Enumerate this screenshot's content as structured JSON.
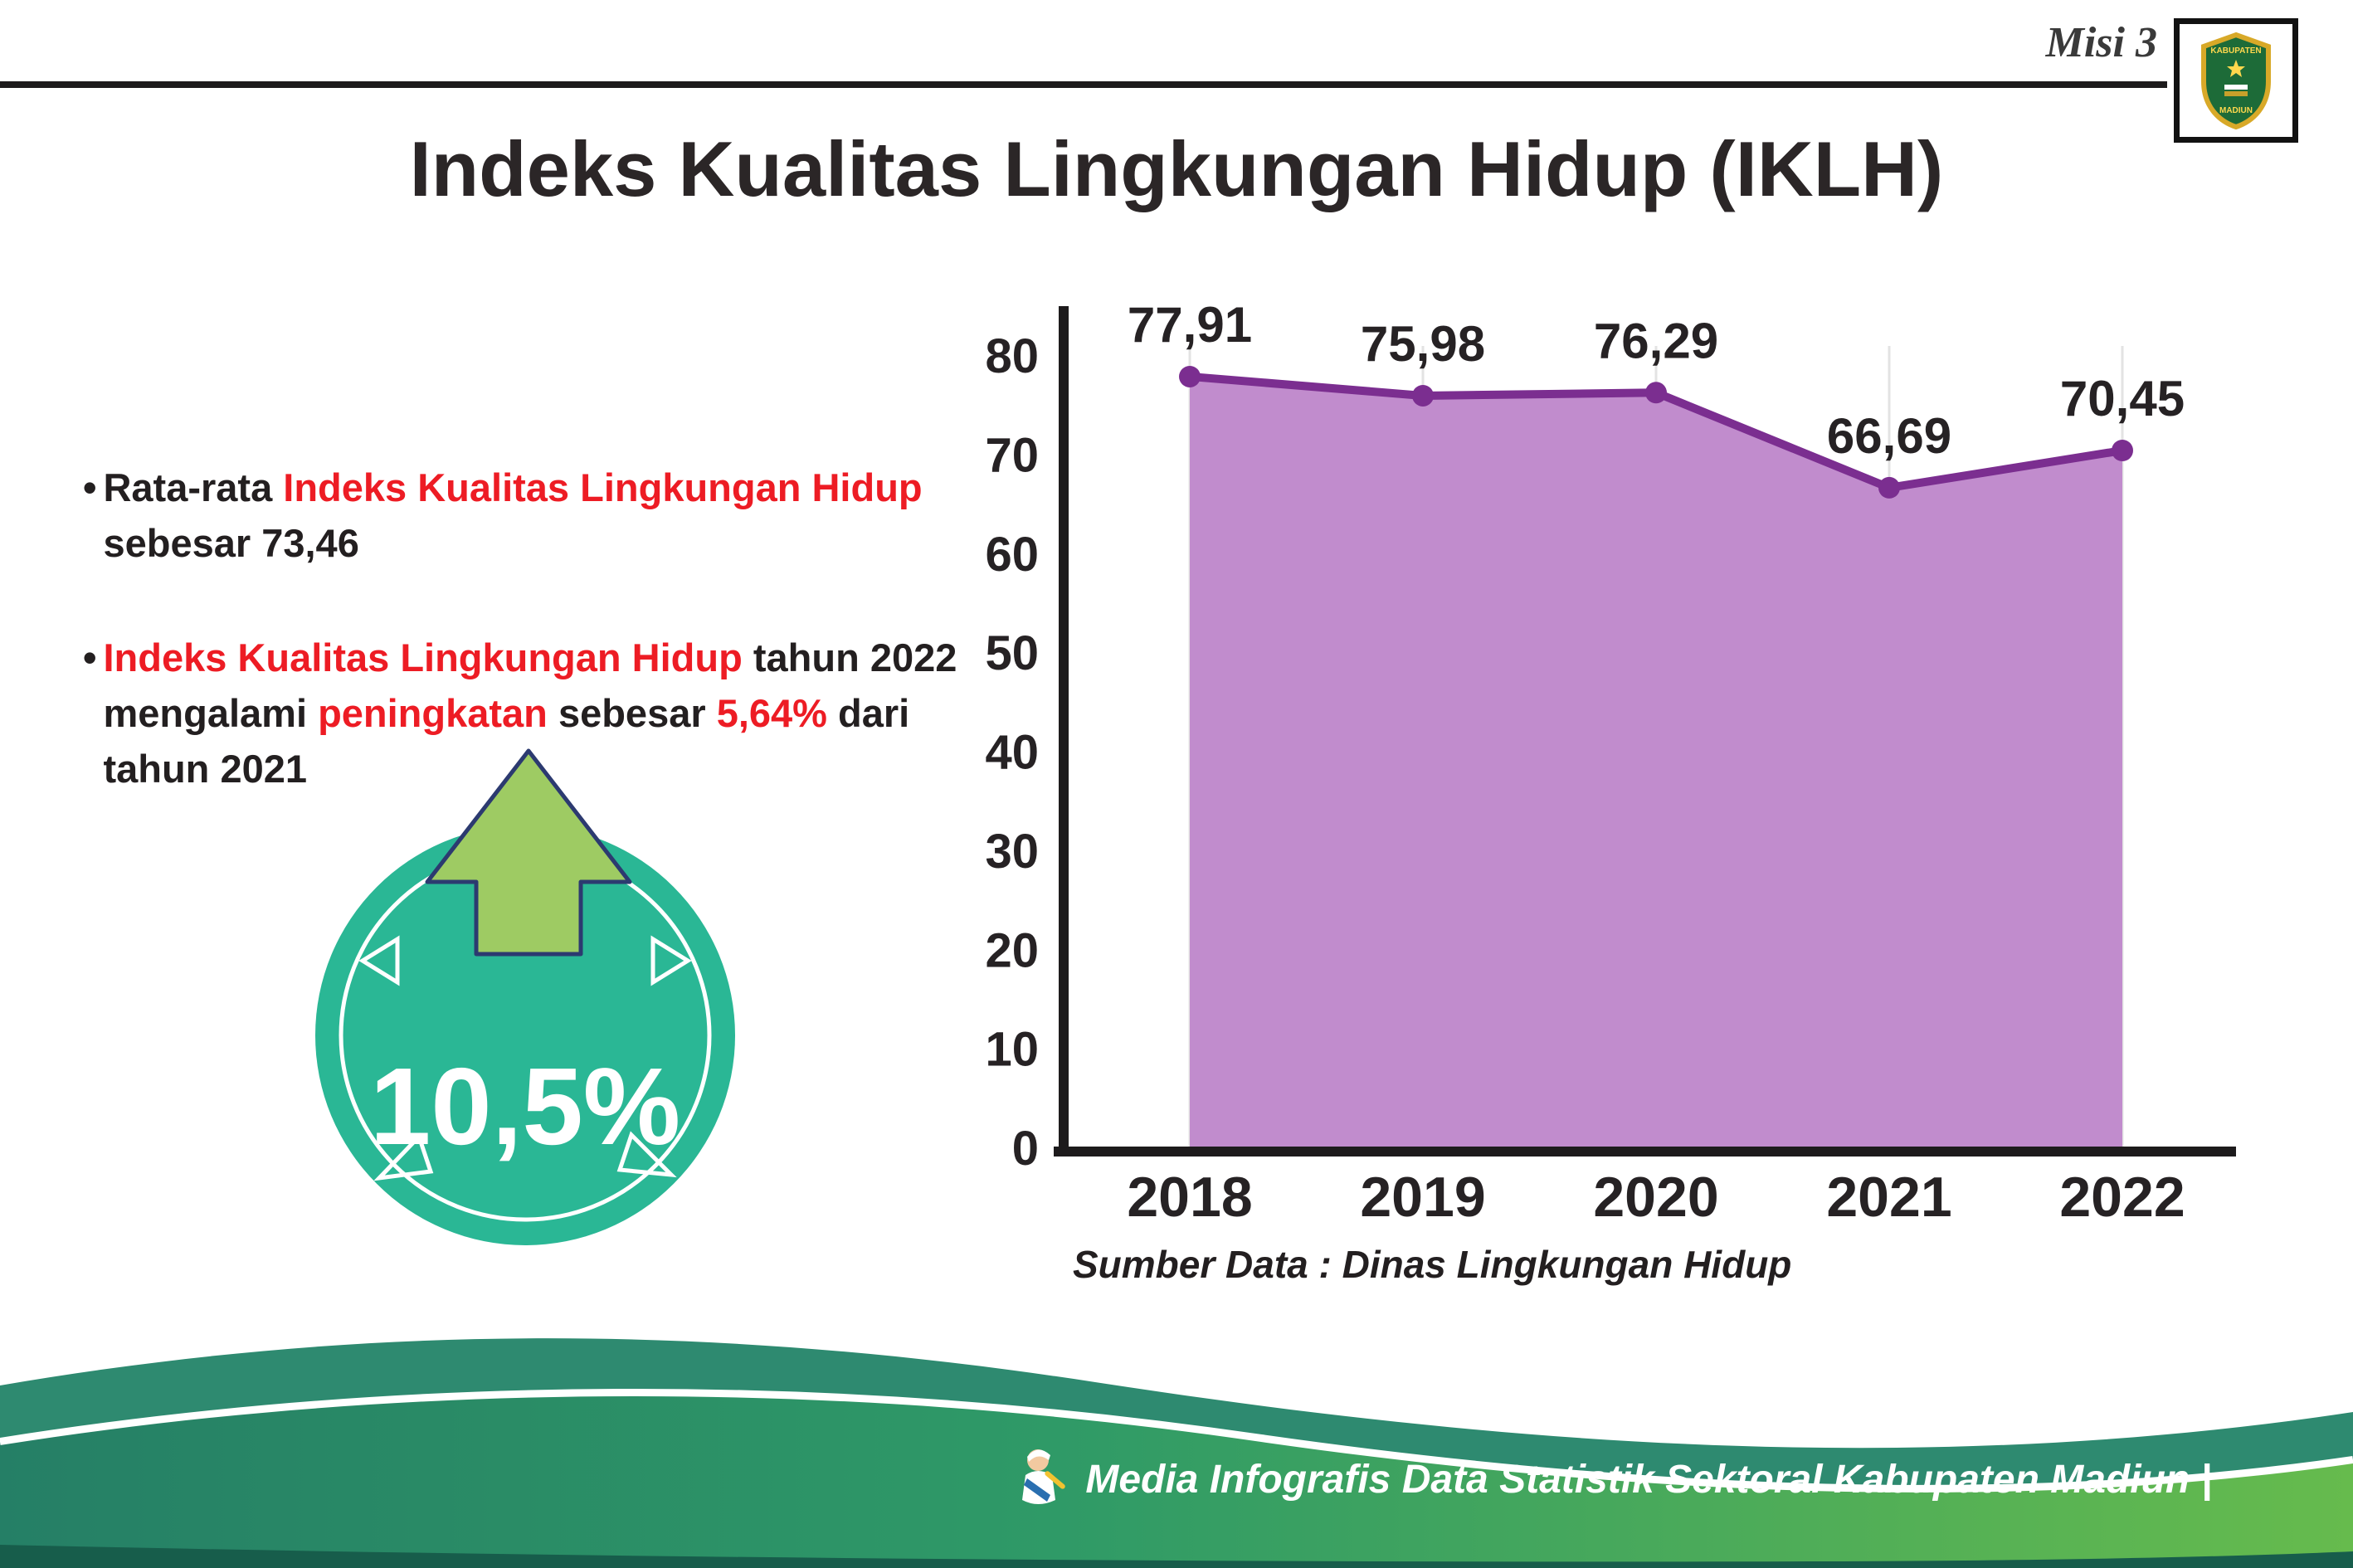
{
  "header": {
    "misi": "Misi 3",
    "title": "Indeks Kualitas Lingkungan Hidup (IKLH)",
    "logo_top": "KABUPATEN",
    "logo_bottom": "MADIUN"
  },
  "bullet_char": "•",
  "bullets": [
    {
      "segments": [
        {
          "text": "Rata-rata ",
          "red": false
        },
        {
          "text": "Indeks Kualitas Lingkungan Hidup",
          "red": true
        },
        {
          "text": " sebesar 73,46",
          "red": false
        }
      ]
    },
    {
      "segments": [
        {
          "text": "Indeks Kualitas Lingkungan Hidup",
          "red": true
        },
        {
          "text": " tahun 2022 mengalami ",
          "red": false
        },
        {
          "text": "peningkatan",
          "red": true
        },
        {
          "text": " sebesar ",
          "red": false
        },
        {
          "text": "5,64%",
          "red": true
        },
        {
          "text": " dari tahun 2021",
          "red": false
        }
      ]
    }
  ],
  "badge": {
    "value": "10,5%"
  },
  "chart_data": {
    "type": "area",
    "categories": [
      "2018",
      "2019",
      "2020",
      "2021",
      "2022"
    ],
    "series": [
      {
        "name": "IKLH",
        "values": [
          77.91,
          75.98,
          76.29,
          66.69,
          70.45
        ]
      }
    ],
    "value_labels": [
      "77,91",
      "75,98",
      "76,29",
      "66,69",
      "70,45"
    ],
    "title": "",
    "xlabel": "",
    "ylabel": "",
    "ylim": [
      0,
      80
    ],
    "yticks": [
      0,
      10,
      20,
      30,
      40,
      50,
      60,
      70,
      80
    ],
    "grid": "vertical-faint",
    "legend": "none",
    "line_color": "#7b2e90",
    "fill_color": "#c18ccd",
    "source": "Sumber Data : Dinas Lingkungan Hidup"
  },
  "footer": {
    "credit": "Media Infografis Data Statistik Sektoral Kabupaten Madiun |"
  },
  "colors": {
    "accent_red": "#ed1c24",
    "badge_teal": "#2ab795",
    "arrow_green": "#9ecb63",
    "footer_teal": "#2e8a70",
    "footer_green": "#66bb4d"
  }
}
